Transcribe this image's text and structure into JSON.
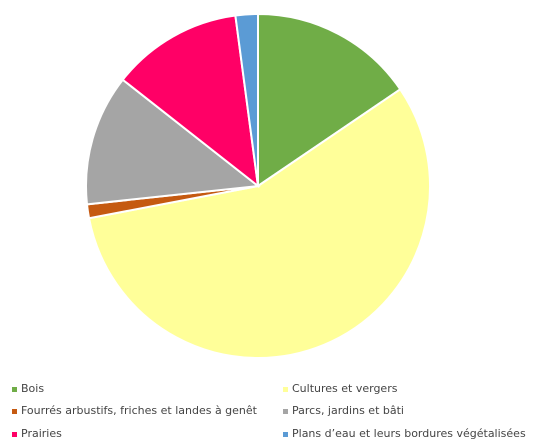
{
  "chart_data": {
    "type": "pie",
    "title": "",
    "legend_position": "bottom",
    "slices": [
      {
        "label": "Bois",
        "value": 15.5,
        "color": "#70ad47"
      },
      {
        "label": "Cultures et vergers",
        "value": 56.5,
        "color": "#ffff99"
      },
      {
        "label": "Fourrés arbustifs, friches et landes à genêt",
        "value": 1.3,
        "color": "#c55a11"
      },
      {
        "label": "Parcs, jardins et bâti",
        "value": 12.3,
        "color": "#a5a5a5"
      },
      {
        "label": "Prairies",
        "value": 12.3,
        "color": "#ff0066"
      },
      {
        "label": "Plans d’eau et leurs bordures végétalisées",
        "value": 2.1,
        "color": "#5b9bd5"
      }
    ]
  }
}
